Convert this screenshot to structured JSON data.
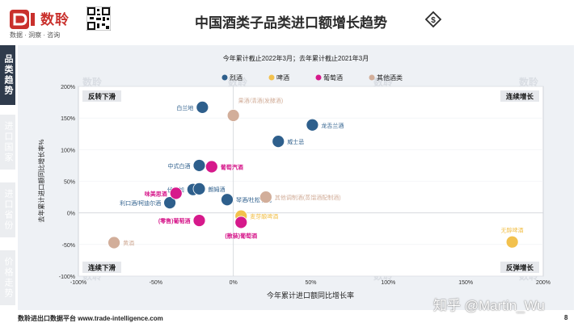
{
  "header": {
    "brand_name": "数聆",
    "brand_tagline": "数据 · 洞察 · 咨询",
    "title": "中国酒类子品类进口额增长趋势"
  },
  "sidebar": {
    "tabs": [
      {
        "label": "品类趋势",
        "active": true
      },
      {
        "label": "进口国家",
        "active": false
      },
      {
        "label": "进口省份",
        "active": false
      },
      {
        "label": "价格走势",
        "active": false
      }
    ]
  },
  "chart_note": "今年累计截止2022年3月；去年累计截止2021年3月",
  "footer": {
    "platform": "数聆进出口数据平台 www.trade-intelligence.com",
    "page": "8"
  },
  "watermark": "知乎 @Martin_Wu",
  "colors": {
    "spirits": "#2e5f8c",
    "beer": "#f2c14e",
    "wine": "#d6198b",
    "other": "#d2ae9a"
  },
  "chart_data": {
    "type": "scatter",
    "title": "",
    "xlabel": "今年累计进口额同比增长率",
    "ylabel": "去年累计进口额同比增长率%",
    "xlim": [
      -100,
      200
    ],
    "ylim": [
      -100,
      200
    ],
    "xticks": [
      "-100%",
      "-50%",
      "0%",
      "50%",
      "100%",
      "150%",
      "200%"
    ],
    "yticks": [
      "-100%",
      "-50%",
      "0%",
      "50%",
      "100%",
      "150%",
      "200%"
    ],
    "legend_position": "top-center",
    "quadrants": {
      "top_left": "反转下滑",
      "top_right": "连续增长",
      "bottom_left": "连续下滑",
      "bottom_right": "反弹增长"
    },
    "series": [
      {
        "name": "烈酒",
        "color": "#2e5f8c",
        "points": [
          {
            "label": "白兰地",
            "x": -20,
            "y": 167,
            "label_side": "left"
          },
          {
            "label": "龙舌兰酒",
            "x": 51,
            "y": 139,
            "label_side": "right"
          },
          {
            "label": "威士忌",
            "x": 29,
            "y": 113,
            "label_side": "right"
          },
          {
            "label": "中式白酒",
            "x": -22,
            "y": 75,
            "label_side": "left"
          },
          {
            "label": "伏特加",
            "x": -26,
            "y": 37,
            "label_side": "left"
          },
          {
            "label": "朗姆酒",
            "x": -22,
            "y": 38,
            "label_side": "right"
          },
          {
            "label": "利口酒/柯迪尔酒",
            "x": -41,
            "y": 16,
            "label_side": "left"
          },
          {
            "label": "琴酒/杜松子酒",
            "x": -4,
            "y": 21,
            "label_side": "right"
          }
        ]
      },
      {
        "name": "啤酒",
        "color": "#f2c14e",
        "points": [
          {
            "label": "麦芽酿啤酒",
            "x": 5,
            "y": -5,
            "label_side": "right"
          },
          {
            "label": "无醇啤酒",
            "x": 180,
            "y": -46,
            "label_side": "top"
          }
        ]
      },
      {
        "name": "葡萄酒",
        "color": "#d6198b",
        "points": [
          {
            "label": "葡萄汽酒",
            "x": -14,
            "y": 73,
            "label_side": "right"
          },
          {
            "label": "味美思酒",
            "x": -37,
            "y": 31,
            "label_side": "left"
          },
          {
            "label": "(零售)葡萄酒",
            "x": -22,
            "y": -12,
            "label_side": "left"
          },
          {
            "label": "(散装)葡萄酒",
            "x": 5,
            "y": -15,
            "label_side": "bottom"
          }
        ]
      },
      {
        "name": "其他酒类",
        "color": "#d2ae9a",
        "points": [
          {
            "label": "果酒/清酒(发酵酒)",
            "x": 0,
            "y": 154,
            "label_side": "top-right"
          },
          {
            "label": "其他调制酒(蒸馏酒配制酒)",
            "x": 21,
            "y": 25,
            "label_side": "right"
          },
          {
            "label": "黄酒",
            "x": -77,
            "y": -47,
            "label_side": "right"
          }
        ]
      }
    ]
  }
}
